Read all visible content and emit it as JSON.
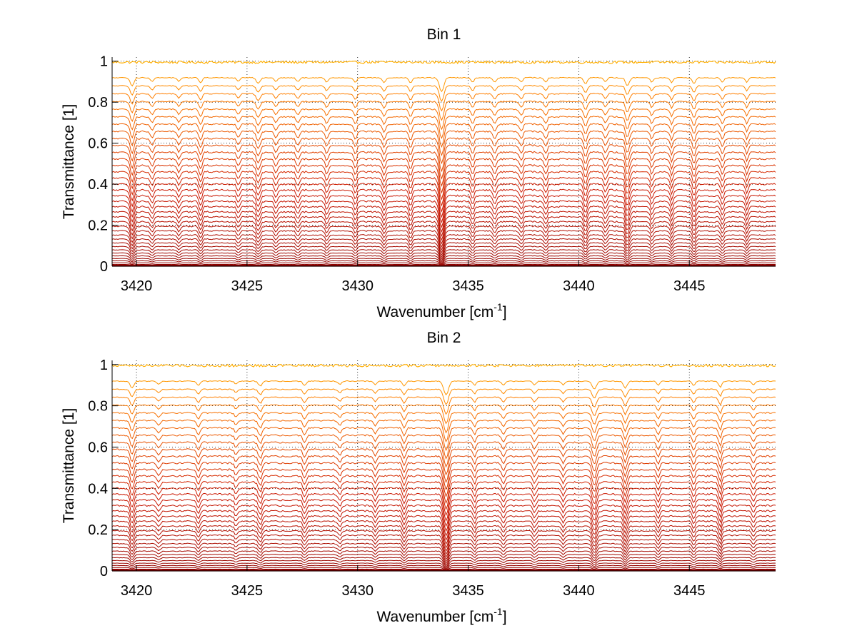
{
  "window": {
    "background": "#ffffff"
  },
  "chart_data": [
    {
      "type": "line",
      "title": "Bin 1",
      "xlabel": "Wavenumber [cm",
      "xlabel_sup": "-1",
      "xlabel_end": "]",
      "ylabel": "Transmittance [1]",
      "xlim": [
        3418.9,
        3448.9
      ],
      "ylim": [
        0,
        1.02
      ],
      "xticks": [
        3420,
        3425,
        3430,
        3435,
        3440,
        3445
      ],
      "xtick_labels": [
        "3420",
        "3425",
        "3430",
        "3435",
        "3440",
        "3445"
      ],
      "yticks": [
        0,
        0.2,
        0.4,
        0.6,
        0.8,
        1
      ],
      "ytick_labels": [
        "0",
        "0.2",
        "0.4",
        "0.6",
        "0.8",
        "1"
      ],
      "grid": "dotted",
      "curve_count": 40,
      "x_range": [
        3418.9,
        3448.9
      ],
      "absorption_lines": [
        {
          "x": 3419.8,
          "depth": 0.55,
          "width": 0.12
        },
        {
          "x": 3420.7,
          "depth": 0.25,
          "width": 0.1
        },
        {
          "x": 3421.9,
          "depth": 0.22,
          "width": 0.1
        },
        {
          "x": 3422.9,
          "depth": 0.35,
          "width": 0.1
        },
        {
          "x": 3424.6,
          "depth": 0.22,
          "width": 0.1
        },
        {
          "x": 3425.5,
          "depth": 0.4,
          "width": 0.12
        },
        {
          "x": 3426.3,
          "depth": 0.25,
          "width": 0.1
        },
        {
          "x": 3427.3,
          "depth": 0.28,
          "width": 0.1
        },
        {
          "x": 3428.6,
          "depth": 0.3,
          "width": 0.1
        },
        {
          "x": 3429.9,
          "depth": 0.28,
          "width": 0.1
        },
        {
          "x": 3431.2,
          "depth": 0.32,
          "width": 0.1
        },
        {
          "x": 3432.4,
          "depth": 0.35,
          "width": 0.1
        },
        {
          "x": 3433.8,
          "depth": 0.95,
          "width": 0.14
        },
        {
          "x": 3435.2,
          "depth": 0.28,
          "width": 0.1
        },
        {
          "x": 3436.2,
          "depth": 0.32,
          "width": 0.1
        },
        {
          "x": 3437.4,
          "depth": 0.3,
          "width": 0.1
        },
        {
          "x": 3438.5,
          "depth": 0.3,
          "width": 0.1
        },
        {
          "x": 3440.3,
          "depth": 0.4,
          "width": 0.12
        },
        {
          "x": 3441.2,
          "depth": 0.28,
          "width": 0.1
        },
        {
          "x": 3442.2,
          "depth": 0.55,
          "width": 0.12
        },
        {
          "x": 3443.3,
          "depth": 0.28,
          "width": 0.1
        },
        {
          "x": 3444.2,
          "depth": 0.32,
          "width": 0.1
        },
        {
          "x": 3445.2,
          "depth": 0.4,
          "width": 0.1
        },
        {
          "x": 3446.5,
          "depth": 0.3,
          "width": 0.1
        },
        {
          "x": 3447.6,
          "depth": 0.3,
          "width": 0.1
        }
      ],
      "colors": {
        "deep": "#8b0000",
        "mid": "#cc1800",
        "light": "#ff8000",
        "top": "#ffb000"
      }
    },
    {
      "type": "line",
      "title": "Bin 2",
      "xlabel": "Wavenumber [cm",
      "xlabel_sup": "-1",
      "xlabel_end": "]",
      "ylabel": "Transmittance [1]",
      "xlim": [
        3418.9,
        3448.9
      ],
      "ylim": [
        0,
        1.02
      ],
      "xticks": [
        3420,
        3425,
        3430,
        3435,
        3440,
        3445
      ],
      "xtick_labels": [
        "3420",
        "3425",
        "3430",
        "3435",
        "3440",
        "3445"
      ],
      "yticks": [
        0,
        0.2,
        0.4,
        0.6,
        0.8,
        1
      ],
      "ytick_labels": [
        "0",
        "0.2",
        "0.4",
        "0.6",
        "0.8",
        "1"
      ],
      "grid": "dotted",
      "curve_count": 40,
      "x_range": [
        3418.9,
        3448.9
      ],
      "absorption_lines": [
        {
          "x": 3419.8,
          "depth": 0.45,
          "width": 0.12
        },
        {
          "x": 3421.0,
          "depth": 0.22,
          "width": 0.1
        },
        {
          "x": 3422.8,
          "depth": 0.3,
          "width": 0.1
        },
        {
          "x": 3424.5,
          "depth": 0.2,
          "width": 0.1
        },
        {
          "x": 3425.6,
          "depth": 0.32,
          "width": 0.12
        },
        {
          "x": 3427.6,
          "depth": 0.3,
          "width": 0.1
        },
        {
          "x": 3429.2,
          "depth": 0.22,
          "width": 0.1
        },
        {
          "x": 3430.8,
          "depth": 0.24,
          "width": 0.1
        },
        {
          "x": 3432.1,
          "depth": 0.3,
          "width": 0.1
        },
        {
          "x": 3434.0,
          "depth": 0.92,
          "width": 0.15
        },
        {
          "x": 3435.3,
          "depth": 0.25,
          "width": 0.1
        },
        {
          "x": 3436.6,
          "depth": 0.26,
          "width": 0.1
        },
        {
          "x": 3438.0,
          "depth": 0.26,
          "width": 0.1
        },
        {
          "x": 3439.3,
          "depth": 0.24,
          "width": 0.1
        },
        {
          "x": 3440.7,
          "depth": 0.55,
          "width": 0.13
        },
        {
          "x": 3442.1,
          "depth": 0.45,
          "width": 0.12
        },
        {
          "x": 3443.6,
          "depth": 0.26,
          "width": 0.1
        },
        {
          "x": 3445.2,
          "depth": 0.28,
          "width": 0.1
        },
        {
          "x": 3446.4,
          "depth": 0.4,
          "width": 0.1
        },
        {
          "x": 3447.9,
          "depth": 0.26,
          "width": 0.1
        }
      ],
      "colors": {
        "deep": "#8b0000",
        "mid": "#cc1800",
        "light": "#ff8000",
        "top": "#ffb000"
      }
    }
  ]
}
